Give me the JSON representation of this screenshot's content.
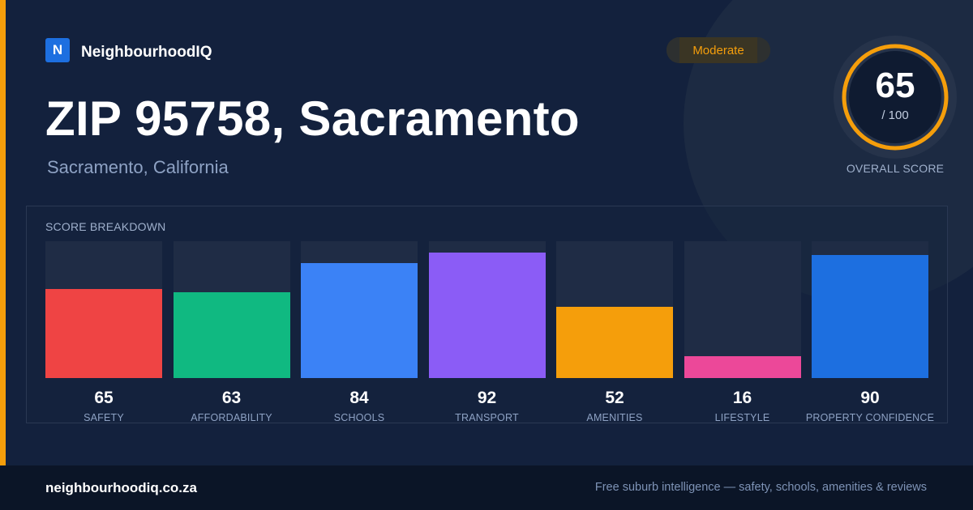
{
  "brand": {
    "logo_letter": "N",
    "name": "NeighbourhoodIQ"
  },
  "badge": {
    "label": "Moderate"
  },
  "header": {
    "title": "ZIP 95758, Sacramento",
    "subtitle": "Sacramento, California"
  },
  "overall": {
    "score": "65",
    "max_label": "/ 100",
    "label": "OVERALL SCORE",
    "fraction": 0.65
  },
  "colors": {
    "accent": "#f59e0b",
    "brand": "#1d6fe0",
    "background": "#13213d",
    "footer": "#0b1527"
  },
  "chart_data": {
    "type": "bar",
    "title": "SCORE BREAKDOWN",
    "ylim": [
      0,
      100
    ],
    "categories": [
      "SAFETY",
      "AFFORDABILITY",
      "SCHOOLS",
      "TRANSPORT",
      "AMENITIES",
      "LIFESTYLE",
      "PROPERTY CONFIDENCE"
    ],
    "values": [
      65,
      63,
      84,
      92,
      52,
      16,
      90
    ],
    "colors": [
      "#ef4444",
      "#10b981",
      "#3b82f6",
      "#8b5cf6",
      "#f59e0b",
      "#ec4899",
      "#1d6fe0"
    ],
    "grid": false,
    "legend": "none"
  },
  "footer": {
    "site": "neighbourhoodiq.co.za",
    "tagline": "Free suburb intelligence — safety, schools, amenities & reviews"
  }
}
